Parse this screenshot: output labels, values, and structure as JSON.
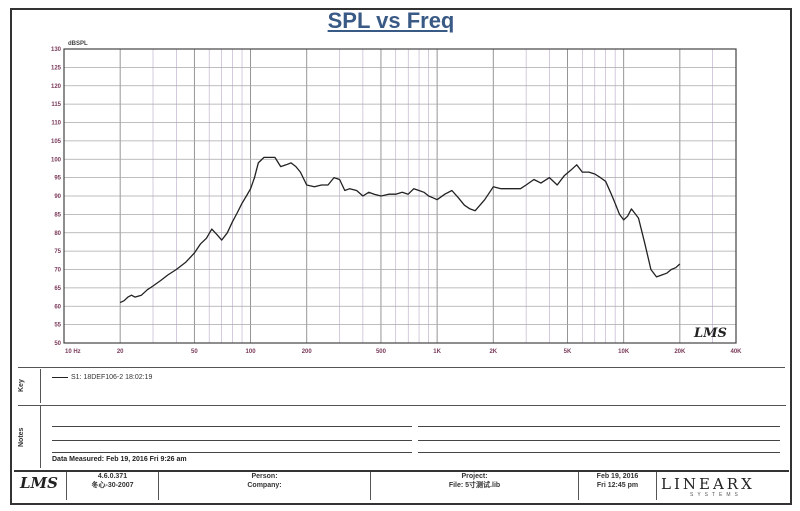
{
  "title": "SPL vs Freq",
  "chart_data": {
    "type": "line",
    "title": "SPL vs Freq",
    "ylabel": "dBSPL",
    "xlabel": "",
    "x_scale": "log",
    "xlim": [
      10,
      40000
    ],
    "ylim": [
      50,
      130
    ],
    "y_ticks": [
      "50",
      "55",
      "60",
      "65",
      "70",
      "75",
      "80",
      "85",
      "90",
      "95",
      "100",
      "105",
      "110",
      "115",
      "120",
      "125",
      "130"
    ],
    "x_ticks": [
      {
        "value": 10,
        "label": "10 Hz"
      },
      {
        "value": 20,
        "label": "20"
      },
      {
        "value": 50,
        "label": "50"
      },
      {
        "value": 100,
        "label": "100"
      },
      {
        "value": 200,
        "label": "200"
      },
      {
        "value": 500,
        "label": "500"
      },
      {
        "value": 1000,
        "label": "1K"
      },
      {
        "value": 2000,
        "label": "2K"
      },
      {
        "value": 5000,
        "label": "5K"
      },
      {
        "value": 10000,
        "label": "10K"
      },
      {
        "value": 20000,
        "label": "20K"
      },
      {
        "value": 40000,
        "label": "40K"
      }
    ],
    "grid": true,
    "series": [
      {
        "x": [
          20,
          21,
          22,
          23,
          24,
          26,
          28,
          30,
          33,
          36,
          40,
          45,
          50,
          54,
          58,
          62,
          66,
          70,
          75,
          80,
          85,
          90,
          95,
          100,
          105,
          110,
          118,
          125,
          135,
          145,
          155,
          165,
          175,
          185,
          200,
          220,
          240,
          260,
          280,
          300,
          320,
          340,
          370,
          400,
          430,
          460,
          500,
          550,
          600,
          650,
          700,
          750,
          800,
          850,
          900,
          950,
          1000,
          1100,
          1200,
          1300,
          1400,
          1500,
          1600,
          1800,
          2000,
          2200,
          2400,
          2600,
          2800,
          3000,
          3300,
          3600,
          4000,
          4400,
          4800,
          5200,
          5600,
          6000,
          6500,
          7000,
          7500,
          8000,
          8500,
          9000,
          9500,
          10000,
          10500,
          11000,
          12000,
          13000,
          14000,
          15000,
          16000,
          17000,
          18000,
          19000,
          20000
        ],
        "y": [
          61,
          61.5,
          62.5,
          63,
          62.5,
          63,
          64.5,
          65.5,
          67,
          68.5,
          70,
          72,
          74.5,
          77,
          78.5,
          81,
          79.5,
          78,
          80,
          83,
          85.5,
          88,
          90,
          92,
          95,
          99,
          100.5,
          100.5,
          100.5,
          98,
          98.5,
          99,
          98,
          96.5,
          93,
          92.5,
          93,
          93,
          95,
          94.5,
          91.5,
          92,
          91.5,
          90,
          91,
          90.5,
          90,
          90.5,
          90.5,
          91,
          90.5,
          92,
          91.5,
          91,
          90,
          89.5,
          89,
          90.5,
          91.5,
          89.5,
          87.5,
          86.5,
          86,
          89,
          92.5,
          92,
          92,
          92,
          92,
          93,
          94.5,
          93.5,
          95,
          93,
          95.5,
          97,
          98.5,
          96.5,
          96.5,
          96,
          95,
          94,
          91,
          88,
          85,
          83.5,
          84.5,
          86.5,
          84,
          77,
          70,
          68,
          68.5,
          69,
          70,
          70.5,
          71.5
        ]
      }
    ]
  },
  "logo_text": "LMS",
  "legend": {
    "side_label": "Key",
    "entry": "S1: 18DEF106-2  18:02:19"
  },
  "notes": {
    "side_label": "Notes",
    "measured": "Data Measured: Feb 19, 2016  Fri  9:26 am"
  },
  "footer": {
    "logo": "LMS",
    "version": "4.6.0.371",
    "version_date": "冬心-30-2007",
    "person_label": "Person:",
    "company_label": "Company:",
    "project_label": "Project:",
    "file_label": "File: 5寸测试.lib",
    "date": "Feb 19, 2016",
    "time": "Fri 12:45 pm",
    "brand": "LINEARX",
    "brand_sub": "SYSTEMS"
  }
}
